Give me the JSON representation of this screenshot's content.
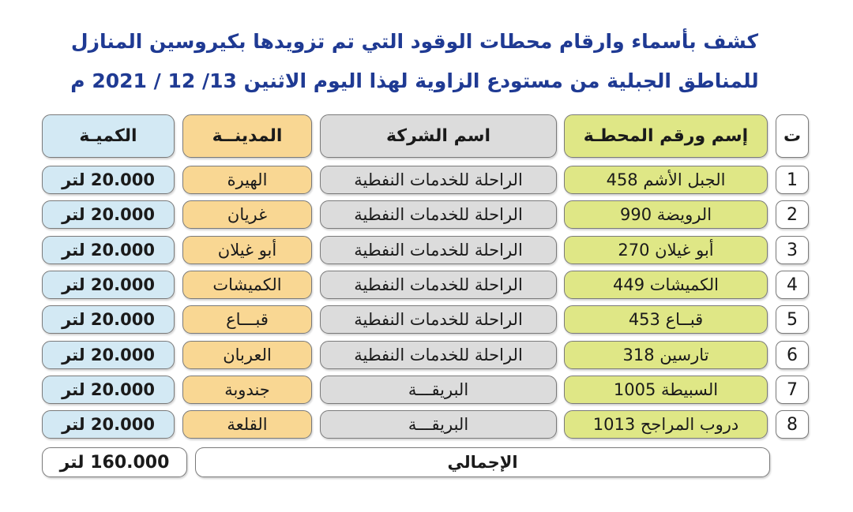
{
  "title_line1": "كشف بأسماء وارقام محطات الوقود التي تم تزويدها بكيروسين المنازل",
  "title_line2": "للمناطق الجبلية من مستودع الزاوية لهذا اليوم الاثنين 13/ 12 / 2021 م",
  "headers": {
    "index": "ت",
    "station": "إسم ورقم المحطـة",
    "company": "اسم الشركة",
    "city": "المدينــة",
    "quantity": "الكميـة"
  },
  "rows": [
    {
      "index": "1",
      "station": "الجبل الأشم 458",
      "company": "الراحلة للخدمات النفطية",
      "city": "الهيرة",
      "quantity": "20.000 لتر"
    },
    {
      "index": "2",
      "station": "الرويضة 990",
      "company": "الراحلة للخدمات النفطية",
      "city": "غريان",
      "quantity": "20.000 لتر"
    },
    {
      "index": "3",
      "station": "أبو غيلان 270",
      "company": "الراحلة للخدمات النفطية",
      "city": "أبو غيلان",
      "quantity": "20.000 لتر"
    },
    {
      "index": "4",
      "station": "الكميشات 449",
      "company": "الراحلة للخدمات النفطية",
      "city": "الكميشات",
      "quantity": "20.000 لتر"
    },
    {
      "index": "5",
      "station": "قبــاع 453",
      "company": "الراحلة للخدمات النفطية",
      "city": "قبـــاع",
      "quantity": "20.000 لتر"
    },
    {
      "index": "6",
      "station": "تارسين 318",
      "company": "الراحلة للخدمات النفطية",
      "city": "العربان",
      "quantity": "20.000 لتر"
    },
    {
      "index": "7",
      "station": "السبيطة 1005",
      "company": "البريقـــة",
      "city": "جندوبة",
      "quantity": "20.000 لتر"
    },
    {
      "index": "8",
      "station": "دروب المراجح 1013",
      "company": "البريقـــة",
      "city": "القلعة",
      "quantity": "20.000 لتر"
    }
  ],
  "total": {
    "label": "الإجمالي",
    "value": "160.000 لتر"
  },
  "colors": {
    "title": "#1f3a93",
    "station_bg": "#dfe786",
    "company_bg": "#dcdcdc",
    "city_bg": "#f9d793",
    "quantity_bg": "#d3e9f4"
  }
}
